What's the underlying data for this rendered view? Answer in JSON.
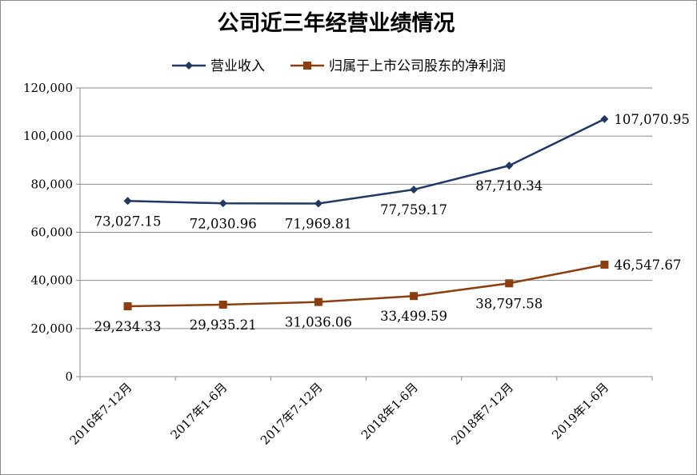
{
  "chart_data": {
    "type": "line",
    "title": "公司近三年经营业绩情况",
    "categories": [
      "2016年7-12月",
      "2017年1-6月",
      "2017年7-12月",
      "2018年1-6月",
      "2018年7-12月",
      "2019年1-6月"
    ],
    "series": [
      {
        "name": "营业收入",
        "color": "#1f3864",
        "marker": "diamond",
        "values": [
          73027.15,
          72030.96,
          71969.81,
          77759.17,
          87710.34,
          107070.95
        ],
        "labels": [
          "73,027.15",
          "72,030.96",
          "71,969.81",
          "77,759.17",
          "87,710.34",
          "107,070.95"
        ]
      },
      {
        "name": "归属于上市公司股东的净利润",
        "color": "#8b3e0f",
        "marker": "square",
        "values": [
          29234.33,
          29935.21,
          31036.06,
          33499.59,
          38797.58,
          46547.67
        ],
        "labels": [
          "29,234.33",
          "29,935.21",
          "31,036.06",
          "33,499.59",
          "38,797.58",
          "46,547.67"
        ]
      }
    ],
    "yticks": [
      "0",
      "20,000",
      "40,000",
      "60,000",
      "80,000",
      "100,000",
      "120,000"
    ],
    "ylim": [
      0,
      120000
    ],
    "ystep": 20000,
    "grid": true,
    "legend": "top"
  }
}
